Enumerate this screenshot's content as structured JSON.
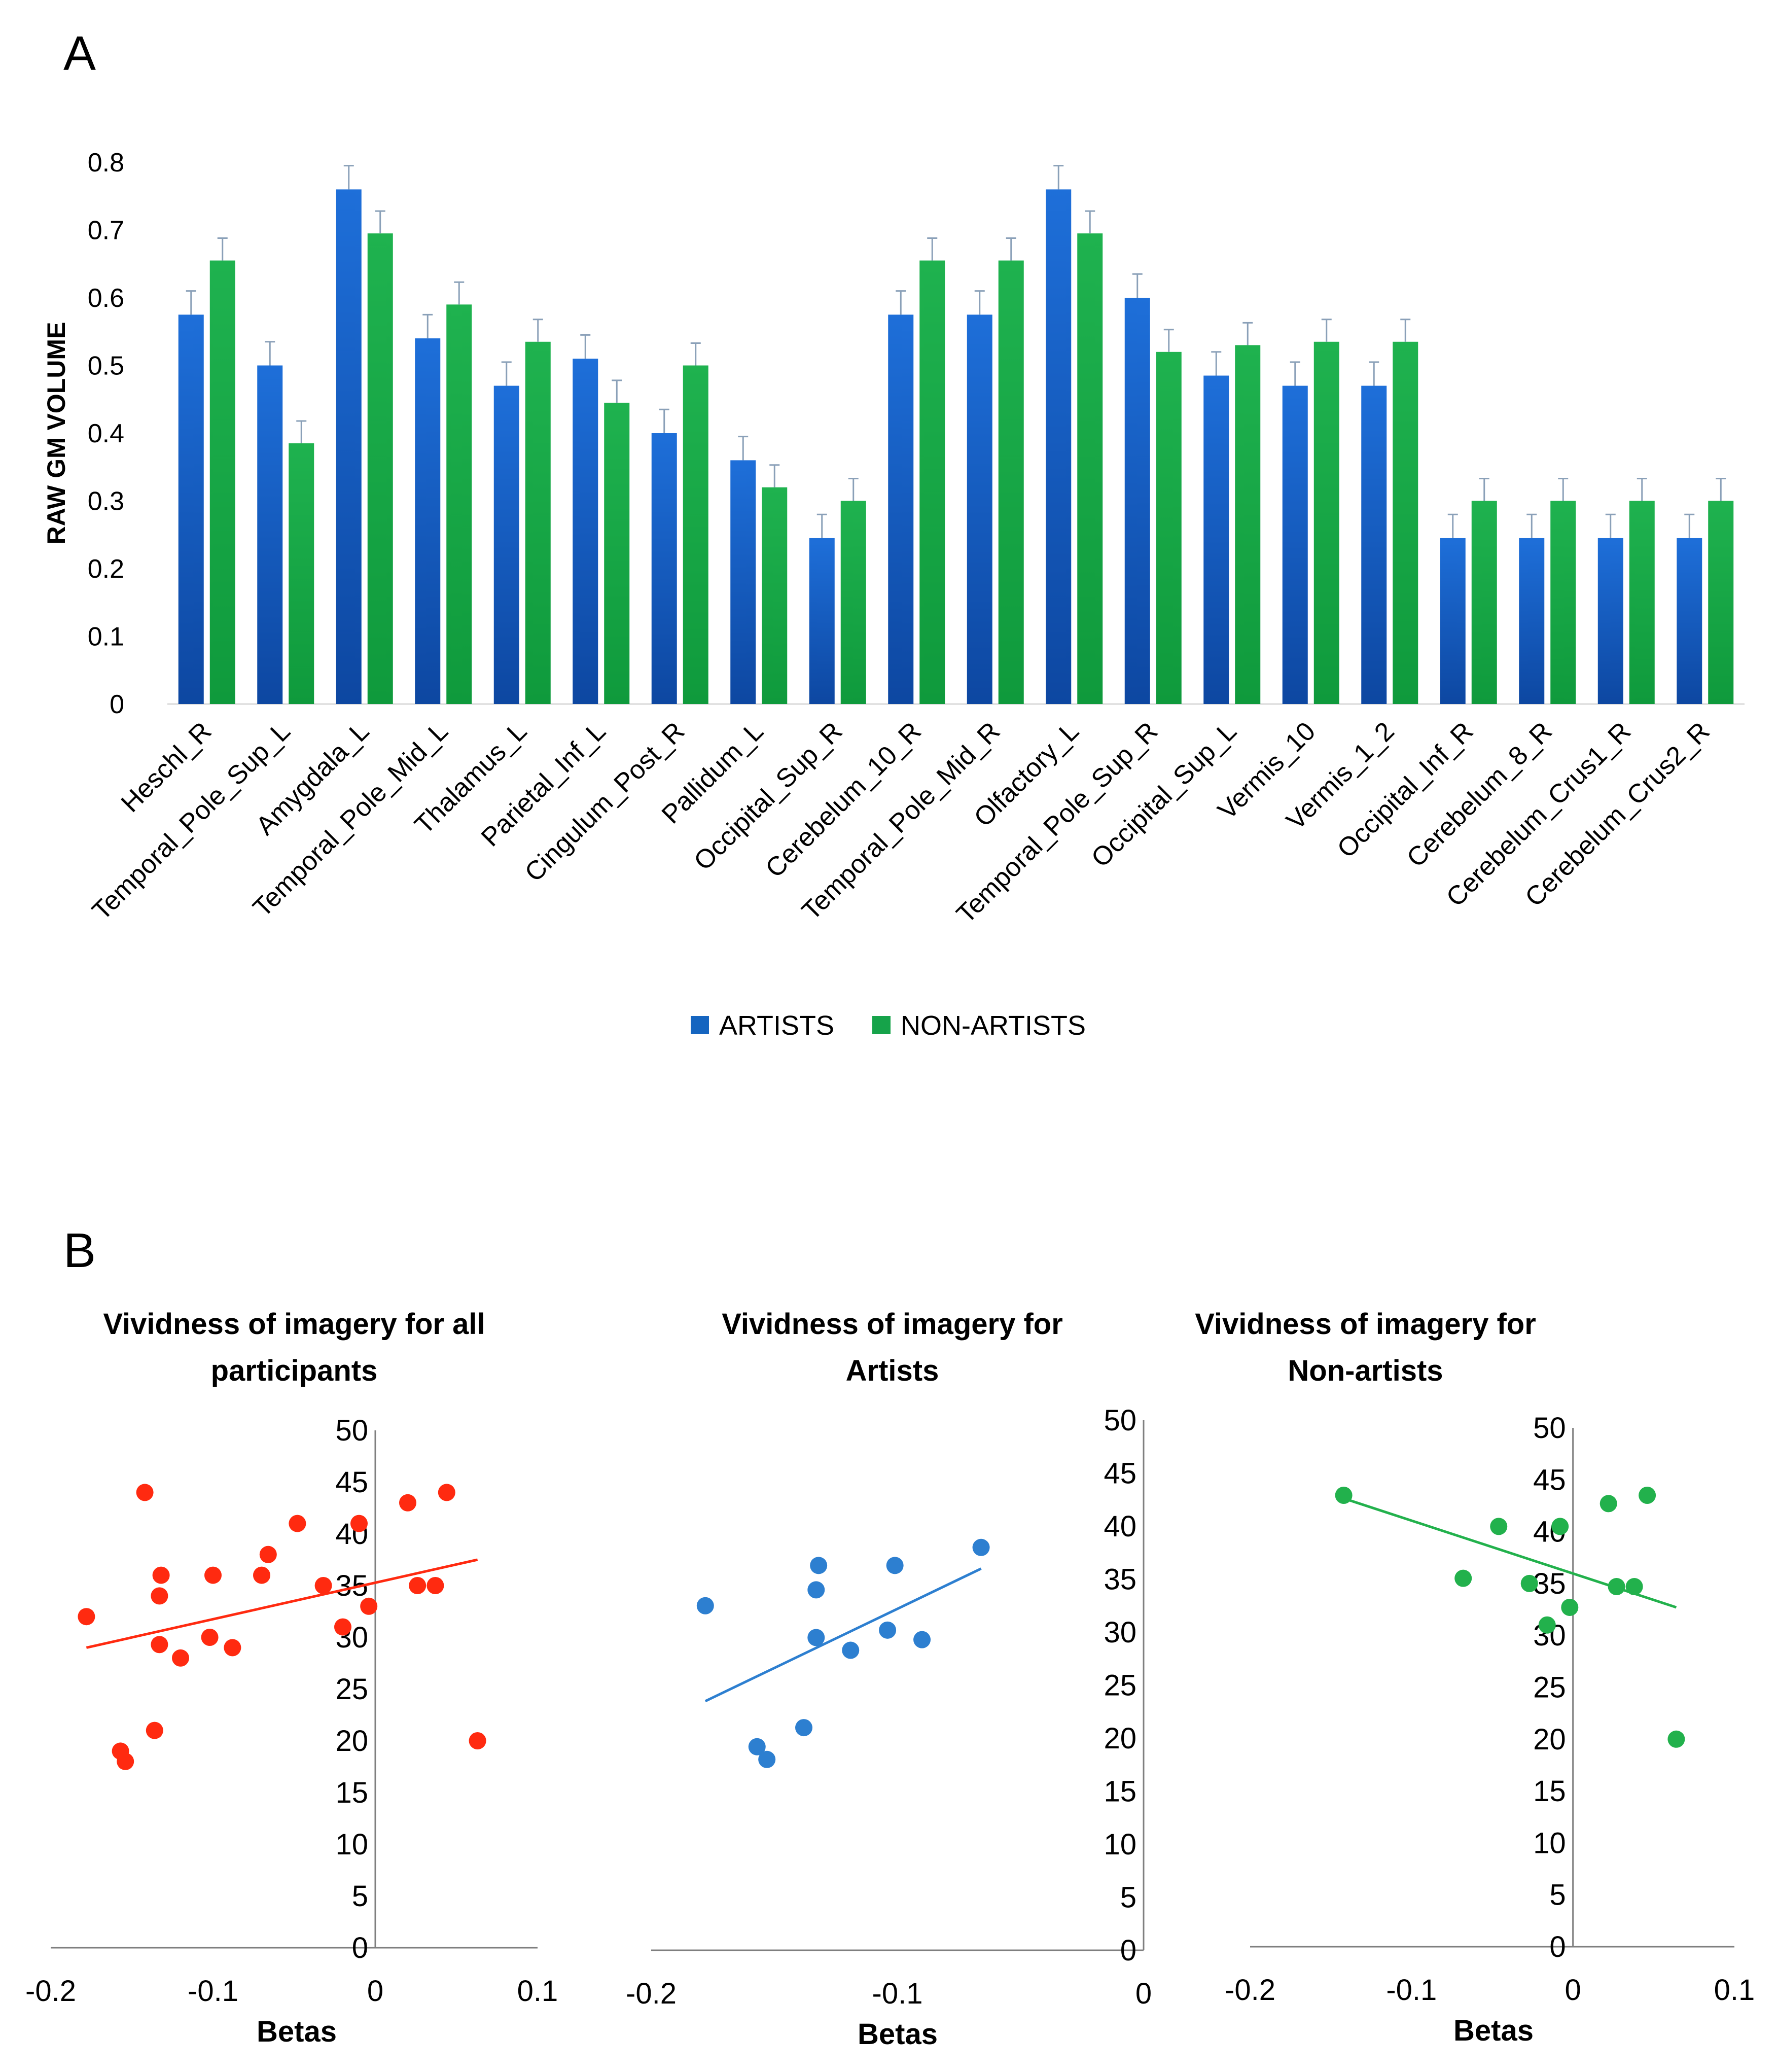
{
  "panel_a_label": "A",
  "panel_b_label": "B",
  "colors": {
    "artists": "#1565c0",
    "non_artists": "#16a34a",
    "all": "#ff2a10",
    "artists_scatter": "#2d7fd0",
    "non_artists_scatter": "#22b14c"
  },
  "chart_data": [
    {
      "type": "bar",
      "ylabel": "RAW GM VOLUME",
      "ylim": [
        0,
        0.8
      ],
      "yticks": [
        "0",
        "0.1",
        "0.2",
        "0.3",
        "0.4",
        "0.5",
        "0.6",
        "0.7",
        "0.8"
      ],
      "categories": [
        "Heschl_R",
        "Temporal_Pole_Sup_L",
        "Amygdala_L",
        "Temporal_Pole_Mid_L",
        "Thalamus_L",
        "Parietal_Inf_L",
        "Cingulum_Post_R",
        "Pallidum_L",
        "Occipital_Sup_R",
        "Cerebelum_10_R",
        "Temporal_Pole_Mid_R",
        "Olfactory_L",
        "Temporal_Pole_Sup_R",
        "Occipital_Sup_L",
        "Vermis_10",
        "Vermis_1_2",
        "Occipital_Inf_R",
        "Cerebelum_8_R",
        "Cerebelum_Crus1_R",
        "Cerebelum_Crus2_R"
      ],
      "series": [
        {
          "name": "ARTISTS",
          "values": [
            0.575,
            0.5,
            0.76,
            0.54,
            0.47,
            0.51,
            0.4,
            0.36,
            0.245,
            0.575,
            0.575,
            0.76,
            0.6,
            0.485,
            0.47,
            0.47,
            0.245,
            0.245,
            0.245,
            0.245
          ],
          "error": 0.035
        },
        {
          "name": "NON-ARTISTS",
          "values": [
            0.655,
            0.385,
            0.695,
            0.59,
            0.535,
            0.445,
            0.5,
            0.32,
            0.3,
            0.655,
            0.655,
            0.695,
            0.52,
            0.53,
            0.535,
            0.535,
            0.3,
            0.3,
            0.3,
            0.3
          ],
          "error": 0.033
        }
      ],
      "legend": [
        "ARTISTS",
        "NON-ARTISTS"
      ]
    },
    {
      "type": "scatter",
      "title_line1": "Vividness of imagery for all",
      "title_line2": "participants",
      "xlabel": "Betas",
      "xlim": [
        -0.2,
        0.1
      ],
      "ylim": [
        0,
        50
      ],
      "xticks": [
        "-0.2",
        "-0.1",
        "0",
        "0.1"
      ],
      "yticks": [
        "0",
        "5",
        "10",
        "15",
        "20",
        "25",
        "30",
        "35",
        "40",
        "45",
        "50"
      ],
      "points": [
        [
          -0.178,
          32
        ],
        [
          -0.142,
          44
        ],
        [
          -0.132,
          36
        ],
        [
          -0.133,
          34
        ],
        [
          -0.133,
          29.3
        ],
        [
          -0.12,
          28
        ],
        [
          -0.1,
          36
        ],
        [
          -0.102,
          30
        ],
        [
          -0.088,
          29
        ],
        [
          -0.07,
          36
        ],
        [
          -0.066,
          38
        ],
        [
          -0.048,
          41
        ],
        [
          -0.032,
          35
        ],
        [
          -0.02,
          31
        ],
        [
          -0.01,
          41
        ],
        [
          -0.004,
          33
        ],
        [
          0.02,
          43
        ],
        [
          0.026,
          35
        ],
        [
          0.037,
          35
        ],
        [
          0.044,
          44
        ],
        [
          0.063,
          20
        ],
        [
          -0.136,
          21
        ],
        [
          -0.157,
          19
        ],
        [
          -0.154,
          18
        ]
      ],
      "trendline": [
        [
          -0.178,
          29
        ],
        [
          0.063,
          37.5
        ]
      ]
    },
    {
      "type": "scatter",
      "title_line1": "Vividness of imagery for",
      "title_line2": "Artists",
      "xlabel": "Betas",
      "xlim": [
        -0.2,
        0
      ],
      "ylim": [
        0,
        50
      ],
      "xticks": [
        "-0.2",
        "-0.1",
        "0"
      ],
      "yticks": [
        "0",
        "5",
        "10",
        "15",
        "20",
        "25",
        "30",
        "35",
        "40",
        "45",
        "50"
      ],
      "points": [
        [
          -0.178,
          32.5
        ],
        [
          -0.157,
          19.2
        ],
        [
          -0.153,
          18
        ],
        [
          -0.138,
          21
        ],
        [
          -0.133,
          29.5
        ],
        [
          -0.133,
          34
        ],
        [
          -0.132,
          36.3
        ],
        [
          -0.119,
          28.3
        ],
        [
          -0.104,
          30.2
        ],
        [
          -0.101,
          36.3
        ],
        [
          -0.09,
          29.3
        ],
        [
          -0.066,
          38
        ]
      ],
      "trendline": [
        [
          -0.178,
          23.5
        ],
        [
          -0.066,
          36
        ]
      ]
    },
    {
      "type": "scatter",
      "title_line1": "Vividness of imagery for",
      "title_line2": "Non-artists",
      "xlabel": "Betas",
      "xlim": [
        -0.2,
        0.1
      ],
      "ylim": [
        0,
        50
      ],
      "xticks": [
        "-0.2",
        "-0.1",
        "0",
        "0.1"
      ],
      "yticks": [
        "0",
        "5",
        "10",
        "15",
        "20",
        "25",
        "30",
        "35",
        "40",
        "45",
        "50"
      ],
      "points": [
        [
          -0.142,
          43.5
        ],
        [
          -0.068,
          35.5
        ],
        [
          -0.046,
          40.5
        ],
        [
          -0.027,
          35
        ],
        [
          -0.016,
          31
        ],
        [
          -0.008,
          40.5
        ],
        [
          -0.002,
          32.7
        ],
        [
          0.022,
          42.7
        ],
        [
          0.027,
          34.7
        ],
        [
          0.038,
          34.7
        ],
        [
          0.046,
          43.5
        ],
        [
          0.064,
          20
        ]
      ],
      "trendline": [
        [
          -0.142,
          43.2
        ],
        [
          0.064,
          32.7
        ]
      ]
    }
  ]
}
